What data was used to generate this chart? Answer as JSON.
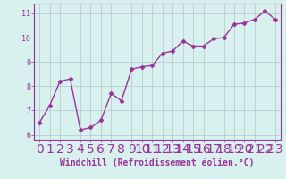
{
  "x": [
    0,
    1,
    2,
    3,
    4,
    5,
    6,
    7,
    8,
    9,
    10,
    11,
    12,
    13,
    14,
    15,
    16,
    17,
    18,
    19,
    20,
    21,
    22,
    23
  ],
  "y": [
    6.5,
    7.2,
    8.2,
    8.3,
    6.2,
    6.3,
    6.6,
    7.7,
    7.4,
    8.7,
    8.8,
    8.85,
    9.35,
    9.45,
    9.85,
    9.65,
    9.65,
    9.95,
    10.0,
    10.55,
    10.6,
    10.75,
    11.1,
    10.75
  ],
  "line_color": "#993399",
  "marker": "D",
  "marker_size": 2.5,
  "linewidth": 1.0,
  "xlabel": "Windchill (Refroidissement éolien,°C)",
  "ylim": [
    5.8,
    11.4
  ],
  "xlim": [
    -0.5,
    23.5
  ],
  "yticks": [
    6,
    7,
    8,
    9,
    10,
    11
  ],
  "xticks": [
    0,
    1,
    2,
    3,
    4,
    5,
    6,
    7,
    8,
    9,
    10,
    11,
    12,
    13,
    14,
    15,
    16,
    17,
    18,
    19,
    20,
    21,
    22,
    23
  ],
  "bg_color": "#d8f0ee",
  "grid_color": "#b0c8c8",
  "tick_label_fontsize": 6,
  "xlabel_fontsize": 7,
  "xlabel_color": "#993399",
  "tick_label_color": "#993399",
  "spine_color": "#993399"
}
